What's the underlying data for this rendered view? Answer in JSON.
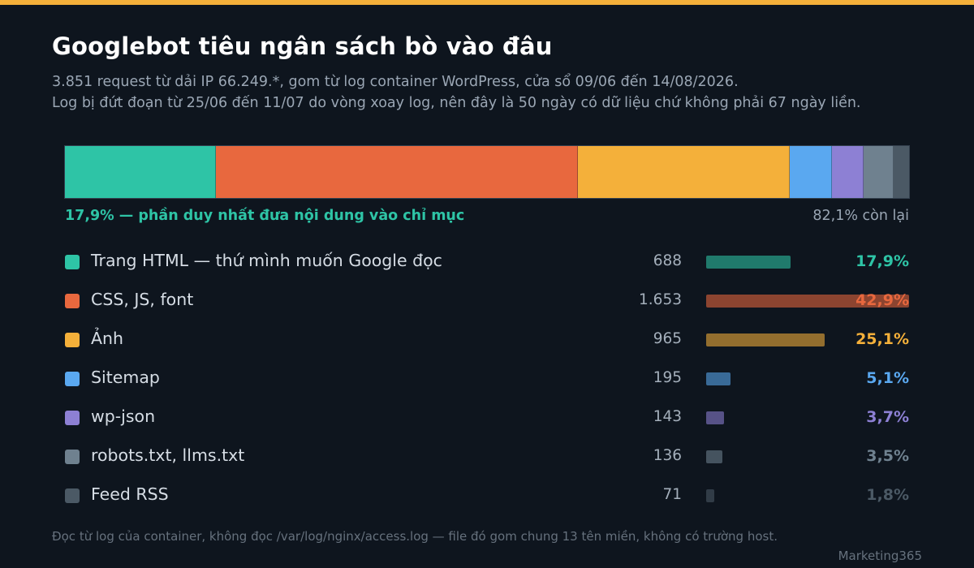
{
  "header": {
    "title": "Googlebot tiêu ngân sách bò vào đâu",
    "subtitle_line1": "3.851 request từ dải IP 66.249.*, gom từ log container WordPress, cửa sổ 09/06 đến 14/08/2026.",
    "subtitle_line2": "Log bị đứt đoạn từ 25/06 đến 11/07 do vòng xoay log, nên đây là 50 ngày có dữ liệu chứ không phải 67 ngày liền."
  },
  "summary": {
    "left": "17,9% — phần duy nhất đưa nội dung vào chỉ mục",
    "right": "82,1% còn lại"
  },
  "chart_data": {
    "type": "bar",
    "title": "Googlebot tiêu ngân sách bò vào đâu",
    "total": 3851,
    "categories": [
      "Trang HTML — thứ mình muốn Google đọc",
      "CSS, JS, font",
      "Ảnh",
      "Sitemap",
      "wp-json",
      "robots.txt, llms.txt",
      "Feed RSS"
    ],
    "values": [
      688,
      1653,
      965,
      195,
      143,
      136,
      71
    ],
    "value_labels": [
      "688",
      "1.653",
      "965",
      "195",
      "143",
      "136",
      "71"
    ],
    "percent_values": [
      17.9,
      42.9,
      25.1,
      5.1,
      3.7,
      3.5,
      1.8
    ],
    "percent_labels": [
      "17,9%",
      "42,9%",
      "25,1%",
      "5,1%",
      "3,7%",
      "3,5%",
      "1,8%"
    ],
    "colors": [
      "#2ec4a6",
      "#e8683e",
      "#f4b03a",
      "#5aa8f0",
      "#8d80d4",
      "#6f818f",
      "#4b5965"
    ],
    "percent_text_colors": [
      "#2ec4a6",
      "#e8683e",
      "#f4b03a",
      "#5aa8f0",
      "#8d80d4",
      "#6f818f",
      "#4b5965"
    ],
    "legend": "below"
  },
  "footer": {
    "note": "Đọc từ log của container, không đọc /var/log/nginx/access.log — file đó gom chung 13 tên miền, không có trường host.",
    "brand": "Marketing365"
  }
}
